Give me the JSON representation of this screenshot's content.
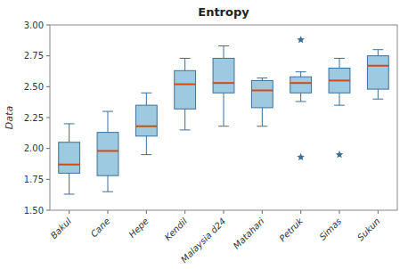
{
  "chart_data": {
    "type": "box",
    "title": "Entropy",
    "ylabel": "Data",
    "categories": [
      "Bakul",
      "Cane",
      "Hepe",
      "Kendil",
      "Malaysia d24",
      "Matahari",
      "Petruk",
      "Simas",
      "Sukun"
    ],
    "boxes": [
      {
        "q1": 1.8,
        "median": 1.87,
        "q3": 2.05,
        "whislo": 1.63,
        "whishi": 2.2,
        "fliers": []
      },
      {
        "q1": 1.78,
        "median": 1.98,
        "q3": 2.13,
        "whislo": 1.65,
        "whishi": 2.3,
        "fliers": []
      },
      {
        "q1": 2.1,
        "median": 2.18,
        "q3": 2.35,
        "whislo": 1.95,
        "whishi": 2.45,
        "fliers": []
      },
      {
        "q1": 2.32,
        "median": 2.52,
        "q3": 2.63,
        "whislo": 2.15,
        "whishi": 2.73,
        "fliers": []
      },
      {
        "q1": 2.45,
        "median": 2.53,
        "q3": 2.73,
        "whislo": 2.18,
        "whishi": 2.83,
        "fliers": []
      },
      {
        "q1": 2.33,
        "median": 2.47,
        "q3": 2.55,
        "whislo": 2.18,
        "whishi": 2.57,
        "fliers": []
      },
      {
        "q1": 2.45,
        "median": 2.53,
        "q3": 2.58,
        "whislo": 2.38,
        "whishi": 2.62,
        "fliers": [
          1.93,
          2.88
        ]
      },
      {
        "q1": 2.45,
        "median": 2.55,
        "q3": 2.65,
        "whislo": 2.35,
        "whishi": 2.73,
        "fliers": [
          1.95
        ]
      },
      {
        "q1": 2.48,
        "median": 2.67,
        "q3": 2.75,
        "whislo": 2.4,
        "whishi": 2.8,
        "fliers": []
      }
    ],
    "ylim": [
      1.5,
      3.0
    ],
    "yticks": [
      {
        "value": 1.5,
        "label": "1.50"
      },
      1.75,
      {
        "value": 2.0,
        "label": "2.00"
      },
      2.25,
      {
        "value": 2.5,
        "label": "2.50"
      },
      2.75,
      {
        "value": 3.0,
        "label": "3.00"
      }
    ],
    "marker": "star",
    "grid": false
  }
}
